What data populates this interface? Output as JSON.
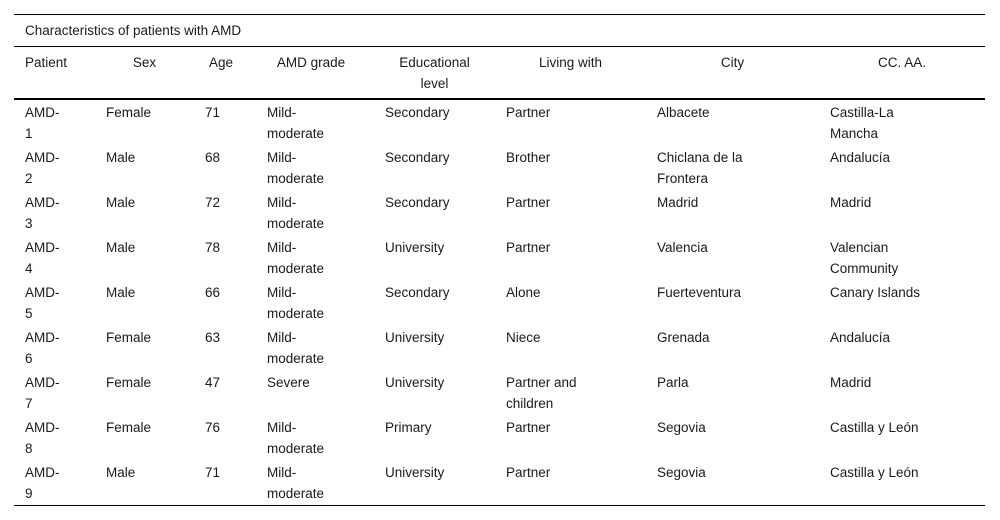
{
  "table": {
    "caption": "Characteristics of patients with AMD",
    "columns": [
      "Patient",
      "Sex",
      "Age",
      "AMD grade",
      "Educational\nlevel",
      "Living with",
      "City",
      "CC. AA."
    ],
    "rows": [
      [
        "AMD-\n1",
        "Female",
        "71",
        "Mild-\nmoderate",
        "Secondary",
        "Partner",
        "Albacete",
        "Castilla-La\nMancha"
      ],
      [
        "AMD-\n2",
        "Male",
        "68",
        "Mild-\nmoderate",
        "Secondary",
        "Brother",
        "Chiclana de la\nFrontera",
        "Andalucía"
      ],
      [
        "AMD-\n3",
        "Male",
        "72",
        "Mild-\nmoderate",
        "Secondary",
        "Partner",
        "Madrid",
        "Madrid"
      ],
      [
        "AMD-\n4",
        "Male",
        "78",
        "Mild-\nmoderate",
        "University",
        "Partner",
        "Valencia",
        "Valencian\nCommunity"
      ],
      [
        "AMD-\n5",
        "Male",
        "66",
        "Mild-\nmoderate",
        "Secondary",
        "Alone",
        "Fuerteventura",
        "Canary Islands"
      ],
      [
        "AMD-\n6",
        "Female",
        "63",
        "Mild-\nmoderate",
        "University",
        "Niece",
        "Grenada",
        "Andalucía"
      ],
      [
        "AMD-\n7",
        "Female",
        "47",
        "Severe",
        "University",
        "Partner and\nchildren",
        "Parla",
        "Madrid"
      ],
      [
        "AMD-\n8",
        "Female",
        "76",
        "Mild-\nmoderate",
        "Primary",
        "Partner",
        "Segovia",
        "Castilla y León"
      ],
      [
        "AMD-\n9",
        "Male",
        "71",
        "Mild-\nmoderate",
        "University",
        "Partner",
        "Segovia",
        "Castilla y León"
      ]
    ],
    "colors": {
      "text": "#1a1a1a",
      "rule": "#000000",
      "background": "#ffffff"
    }
  }
}
